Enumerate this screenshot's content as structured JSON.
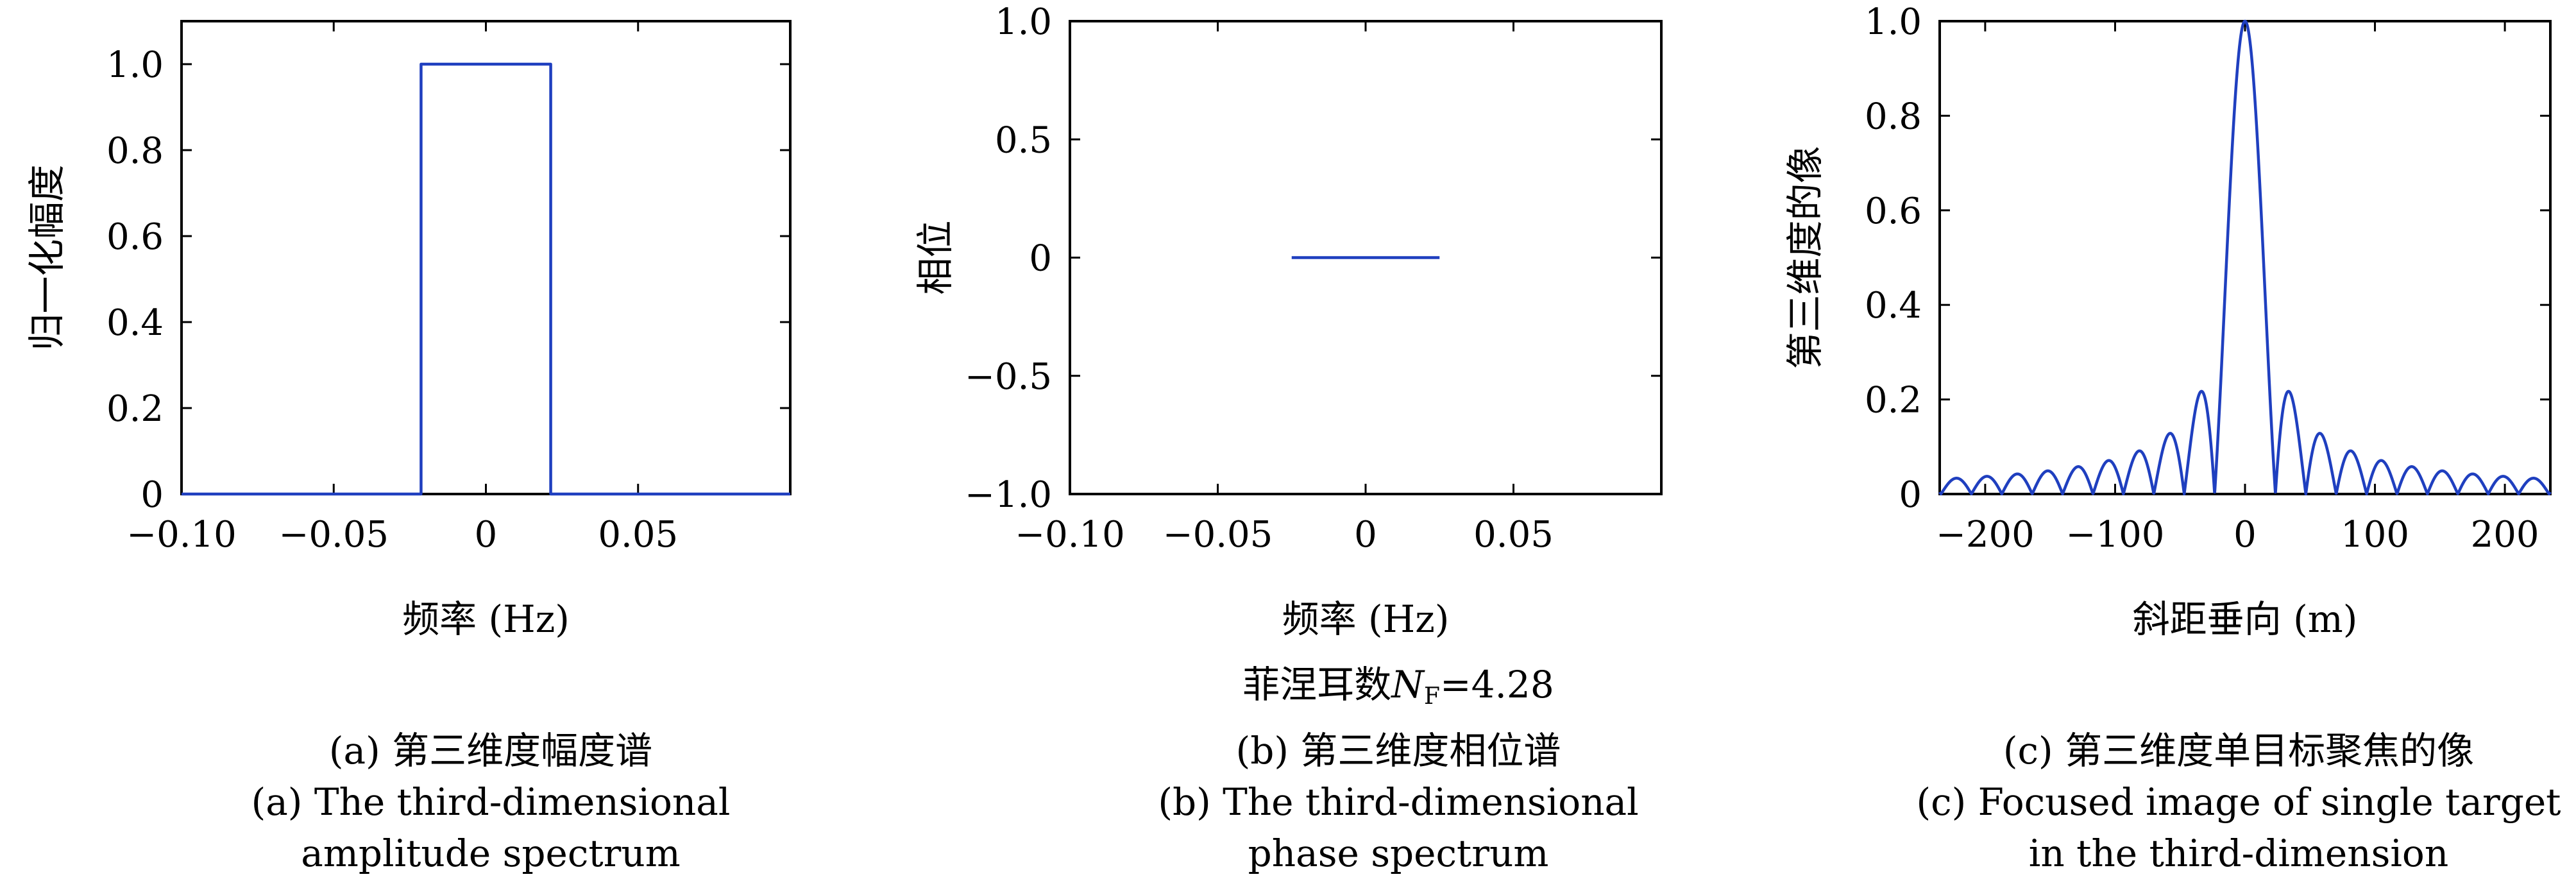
{
  "chart_data": [
    {
      "type": "line",
      "id": "a",
      "xlabel": "频率 (Hz)",
      "ylabel": "归一化幅度",
      "xlim": [
        -0.1,
        0.1
      ],
      "ylim": [
        0,
        1.1
      ],
      "xticks": [
        -0.1,
        -0.05,
        0,
        0.05
      ],
      "xtick_labels": [
        "−0.10",
        "−0.05",
        "0",
        "0.05"
      ],
      "yticks": [
        0,
        0.2,
        0.4,
        0.6,
        0.8,
        1.0
      ],
      "ytick_labels": [
        "0",
        "0.2",
        "0.4",
        "0.6",
        "0.8",
        "1.0"
      ],
      "grid": false,
      "series": [
        {
          "x": [
            -0.1,
            -0.0213,
            -0.0213,
            0.0213,
            0.0213,
            0.1
          ],
          "y": [
            0,
            0,
            1,
            1,
            0,
            0
          ]
        }
      ],
      "caption_cn": "(a) 第三维度幅度谱",
      "caption_en": [
        "(a) The third-dimensional",
        "amplitude spectrum"
      ]
    },
    {
      "type": "line",
      "id": "b",
      "xlabel": "频率 (Hz)",
      "ylabel": "相位",
      "xlim": [
        -0.1,
        0.1
      ],
      "ylim": [
        -1,
        1
      ],
      "xticks": [
        -0.1,
        -0.05,
        0,
        0.05
      ],
      "xtick_labels": [
        "−0.10",
        "−0.05",
        "0",
        "0.05"
      ],
      "yticks": [
        -1,
        -0.5,
        0,
        0.5,
        1
      ],
      "ytick_labels": [
        "−1.0",
        "−0.5",
        "0",
        "0.5",
        "1.0"
      ],
      "grid": false,
      "series": [
        {
          "x": [
            -0.025,
            0.025
          ],
          "y": [
            0,
            0
          ]
        }
      ],
      "caption_cn": "(b) 第三维度相位谱",
      "caption_en": [
        "(b) The third-dimensional",
        "phase spectrum"
      ]
    },
    {
      "type": "line",
      "id": "c",
      "xlabel": "斜距垂向 (m)",
      "ylabel": "第三维度的像",
      "xlim": [
        -235,
        235
      ],
      "ylim": [
        0,
        1
      ],
      "xticks": [
        -200,
        -100,
        0,
        100,
        200
      ],
      "xtick_labels": [
        "−200",
        "−100",
        "0",
        "100",
        "200"
      ],
      "yticks": [
        0,
        0.2,
        0.4,
        0.6,
        0.8,
        1.0
      ],
      "ytick_labels": [
        "0",
        "0.2",
        "0.4",
        "0.6",
        "0.8",
        "1.0"
      ],
      "grid": false,
      "series": [
        {
          "function": "abs_sinc",
          "first_null_m": 23.4
        }
      ],
      "caption_cn": "(c) 第三维度单目标聚焦的像",
      "caption_en": [
        "(c) Focused image of single target",
        "in the third-dimension"
      ]
    }
  ],
  "annotation": {
    "prefix": "菲涅耳数",
    "symbol": "N",
    "subscript": "F",
    "value": "=4.28"
  },
  "colors": {
    "line": "#1f3fbf",
    "axes": "#000000"
  }
}
